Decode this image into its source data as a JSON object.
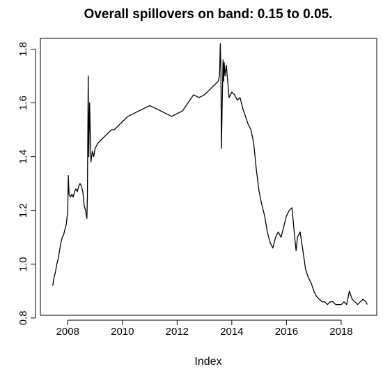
{
  "chart_data": {
    "type": "line",
    "title": "Overall spillovers on band: 0.15 to 0.05.",
    "xlabel": "Index",
    "ylabel": "",
    "xlim": [
      2007.0,
      2019.3
    ],
    "ylim": [
      0.81,
      1.84
    ],
    "x_ticks": [
      2008,
      2010,
      2012,
      2014,
      2016,
      2018
    ],
    "y_ticks": [
      0.8,
      1.0,
      1.2,
      1.4,
      1.6,
      1.8
    ],
    "x_tick_labels": [
      "2008",
      "2010",
      "2012",
      "2014",
      "2016",
      "2018"
    ],
    "y_tick_labels": [
      "0.8",
      "1.0",
      "1.2",
      "1.4",
      "1.6",
      "1.8"
    ],
    "grid": false,
    "legend": "none",
    "line_color": "#000000",
    "series": [
      {
        "x": [
          2007.45,
          2007.5,
          2007.55,
          2007.6,
          2007.65,
          2007.7,
          2007.75,
          2007.8,
          2007.85,
          2007.9,
          2007.95,
          2008.0,
          2008.02,
          2008.05,
          2008.1,
          2008.15,
          2008.2,
          2008.25,
          2008.3,
          2008.35,
          2008.4,
          2008.45,
          2008.5,
          2008.55,
          2008.6,
          2008.65,
          2008.7,
          2008.72,
          2008.75,
          2008.77,
          2008.8,
          2008.83,
          2008.85,
          2008.9,
          2008.95,
          2009.0,
          2009.1,
          2009.2,
          2009.3,
          2009.4,
          2009.5,
          2009.6,
          2009.7,
          2009.8,
          2009.9,
          2010.0,
          2010.2,
          2010.4,
          2010.6,
          2010.8,
          2011.0,
          2011.2,
          2011.4,
          2011.6,
          2011.8,
          2012.0,
          2012.2,
          2012.4,
          2012.6,
          2012.8,
          2013.0,
          2013.2,
          2013.4,
          2013.5,
          2013.55,
          2013.58,
          2013.6,
          2013.62,
          2013.65,
          2013.68,
          2013.7,
          2013.72,
          2013.75,
          2013.8,
          2013.85,
          2013.9,
          2014.0,
          2014.1,
          2014.2,
          2014.3,
          2014.4,
          2014.5,
          2014.6,
          2014.7,
          2014.8,
          2014.9,
          2015.0,
          2015.1,
          2015.2,
          2015.3,
          2015.4,
          2015.5,
          2015.6,
          2015.7,
          2015.8,
          2015.9,
          2016.0,
          2016.1,
          2016.2,
          2016.3,
          2016.35,
          2016.4,
          2016.5,
          2016.6,
          2016.7,
          2016.8,
          2016.9,
          2017.0,
          2017.1,
          2017.2,
          2017.3,
          2017.4,
          2017.5,
          2017.6,
          2017.7,
          2017.8,
          2017.9,
          2018.0,
          2018.1,
          2018.2,
          2018.3,
          2018.4,
          2018.5,
          2018.6,
          2018.7,
          2018.8,
          2018.9,
          2018.95
        ],
        "y": [
          0.92,
          0.95,
          0.97,
          1.0,
          1.02,
          1.05,
          1.08,
          1.1,
          1.11,
          1.13,
          1.15,
          1.2,
          1.33,
          1.26,
          1.25,
          1.26,
          1.25,
          1.27,
          1.28,
          1.27,
          1.29,
          1.3,
          1.29,
          1.27,
          1.22,
          1.2,
          1.17,
          1.25,
          1.7,
          1.4,
          1.6,
          1.45,
          1.38,
          1.42,
          1.4,
          1.43,
          1.45,
          1.46,
          1.47,
          1.48,
          1.49,
          1.5,
          1.5,
          1.51,
          1.52,
          1.53,
          1.55,
          1.56,
          1.57,
          1.58,
          1.59,
          1.58,
          1.57,
          1.56,
          1.55,
          1.56,
          1.57,
          1.6,
          1.63,
          1.62,
          1.63,
          1.65,
          1.67,
          1.68,
          1.7,
          1.82,
          1.72,
          1.43,
          1.6,
          1.76,
          1.68,
          1.75,
          1.7,
          1.74,
          1.68,
          1.62,
          1.64,
          1.63,
          1.61,
          1.62,
          1.58,
          1.55,
          1.52,
          1.5,
          1.45,
          1.35,
          1.27,
          1.22,
          1.18,
          1.12,
          1.08,
          1.06,
          1.1,
          1.12,
          1.1,
          1.14,
          1.18,
          1.2,
          1.21,
          1.1,
          1.05,
          1.1,
          1.12,
          1.05,
          0.98,
          0.95,
          0.93,
          0.9,
          0.88,
          0.87,
          0.86,
          0.86,
          0.85,
          0.86,
          0.86,
          0.85,
          0.85,
          0.85,
          0.86,
          0.85,
          0.9,
          0.87,
          0.86,
          0.85,
          0.86,
          0.87,
          0.86,
          0.85
        ]
      }
    ]
  }
}
